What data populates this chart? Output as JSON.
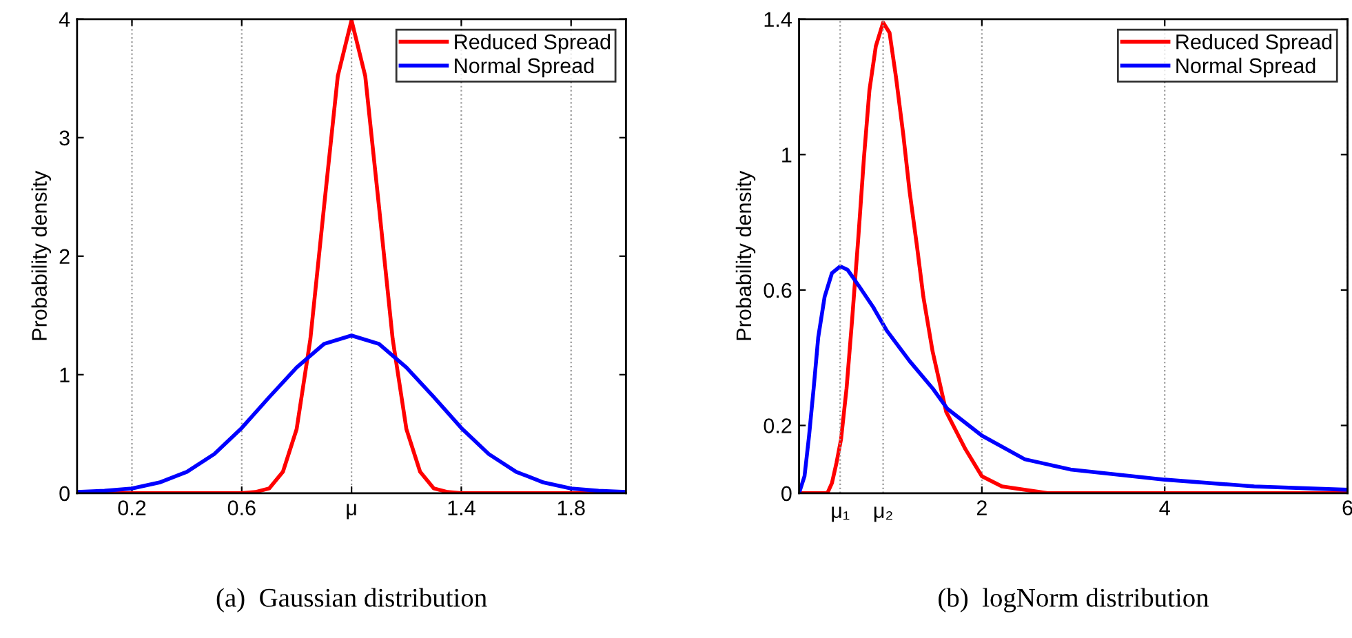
{
  "chart_data": [
    {
      "type": "line",
      "ylabel": "Probability density",
      "xlim": [
        0,
        2
      ],
      "ylim": [
        0,
        4
      ],
      "xticks": [
        0.2,
        0.6,
        {
          "value": 1.0,
          "label": "μ"
        },
        1.4,
        1.8
      ],
      "yticks": [
        0,
        1,
        2,
        3,
        4
      ],
      "grid": "x",
      "legend": "top right",
      "line_style": "solid",
      "marker": "none",
      "annotations": [
        "(a)  Gaussian distribution"
      ],
      "series": [
        {
          "name": "Reduced Spread",
          "color": "#ff0000",
          "x": [
            0,
            0.6,
            0.65,
            0.7,
            0.75,
            0.8,
            0.85,
            0.9,
            0.95,
            1.0,
            1.05,
            1.1,
            1.15,
            1.2,
            1.25,
            1.3,
            1.35,
            1.4,
            2.0
          ],
          "values": [
            0,
            0,
            0.01,
            0.04,
            0.18,
            0.54,
            1.3,
            2.42,
            3.52,
            3.99,
            3.52,
            2.42,
            1.3,
            0.54,
            0.18,
            0.04,
            0.01,
            0,
            0
          ]
        },
        {
          "name": "Normal Spread",
          "color": "#0000ff",
          "x": [
            0,
            0.1,
            0.2,
            0.3,
            0.4,
            0.5,
            0.6,
            0.7,
            0.8,
            0.9,
            1.0,
            1.1,
            1.2,
            1.3,
            1.4,
            1.5,
            1.6,
            1.7,
            1.8,
            1.9,
            2.0
          ],
          "values": [
            0.01,
            0.02,
            0.04,
            0.09,
            0.18,
            0.33,
            0.55,
            0.81,
            1.06,
            1.26,
            1.33,
            1.26,
            1.06,
            0.81,
            0.55,
            0.33,
            0.18,
            0.09,
            0.04,
            0.02,
            0.01
          ]
        }
      ]
    },
    {
      "type": "line",
      "ylabel": "Probability density",
      "xlim": [
        0,
        6
      ],
      "ylim": [
        0,
        1.4
      ],
      "xticks": [
        2,
        4,
        6
      ],
      "yticks": [
        0,
        0.2,
        0.6,
        1,
        1.4
      ],
      "grid": "x",
      "legend": "top right",
      "line_style": "solid",
      "marker": "none",
      "annotations": [
        "(b)  logNorm distribution"
      ],
      "ref_lines": [
        {
          "axis": "x",
          "value": 0.45,
          "label": "μ₁",
          "line_style": "dotted",
          "color": "#999999"
        },
        {
          "axis": "x",
          "value": 0.92,
          "label": "μ₂",
          "line_style": "dotted",
          "color": "#999999"
        }
      ],
      "series": [
        {
          "name": "Reduced Spread",
          "color": "#ff0000",
          "x": [
            0,
            0.21,
            0.31,
            0.36,
            0.41,
            0.46,
            0.52,
            0.58,
            0.65,
            0.71,
            0.77,
            0.84,
            0.92,
            0.99,
            1.06,
            1.14,
            1.21,
            1.29,
            1.36,
            1.46,
            1.61,
            1.82,
            2.0,
            2.22,
            2.72,
            6.0
          ],
          "values": [
            0,
            0,
            0,
            0.03,
            0.09,
            0.16,
            0.31,
            0.51,
            0.76,
            0.99,
            1.19,
            1.32,
            1.39,
            1.36,
            1.23,
            1.06,
            0.89,
            0.73,
            0.58,
            0.42,
            0.24,
            0.13,
            0.05,
            0.02,
            0,
            0
          ]
        },
        {
          "name": "Normal Spread",
          "color": "#0000ff",
          "x": [
            0,
            0.06,
            0.11,
            0.16,
            0.21,
            0.28,
            0.36,
            0.45,
            0.53,
            0.66,
            0.81,
            0.96,
            1.21,
            1.46,
            1.62,
            2.0,
            2.47,
            2.97,
            4.0,
            4.98,
            6.0
          ],
          "values": [
            0,
            0.05,
            0.17,
            0.31,
            0.46,
            0.58,
            0.65,
            0.67,
            0.66,
            0.61,
            0.55,
            0.48,
            0.39,
            0.31,
            0.25,
            0.17,
            0.1,
            0.07,
            0.04,
            0.02,
            0.01
          ]
        }
      ]
    }
  ]
}
